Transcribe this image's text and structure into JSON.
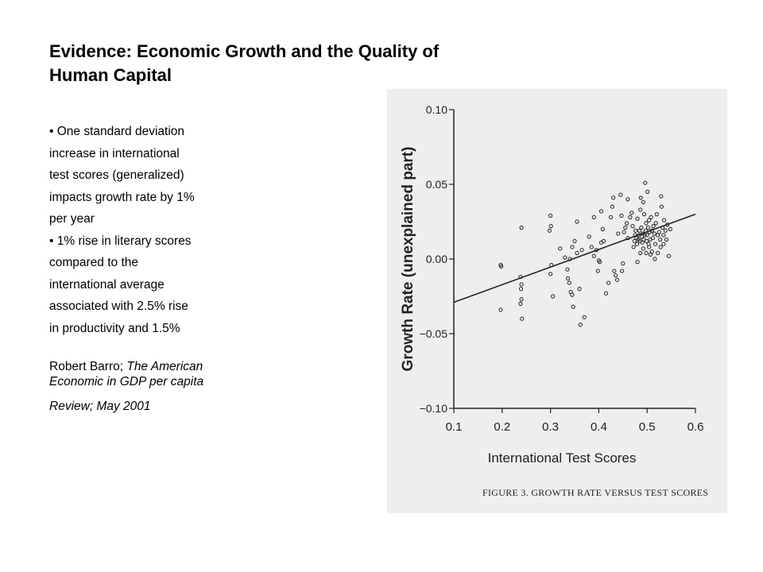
{
  "slide": {
    "title_line1": "Evidence:  Economic Growth and the Quality of",
    "title_line2": "Human Capital",
    "bullet_lines": [
      "• One standard deviation",
      "increase in international",
      "test scores (generalized)",
      "impacts growth rate by 1%",
      "per year",
      "• 1% rise in literary scores",
      "compared to the",
      "international average",
      "associated with 2.5% rise",
      "in productivity and 1.5%"
    ],
    "citation": {
      "author": "Robert Barro; ",
      "journal_part1": "The American",
      "journal_part2": "Economic in GDP per capita",
      "journal_part3": "Review; May 2001"
    }
  },
  "chart_data": {
    "type": "scatter",
    "title": "",
    "caption": "FIGURE 3. GROWTH RATE VERSUS TEST SCORES",
    "xlabel": "International Test Scores",
    "ylabel": "Growth Rate (unexplained part)",
    "xlim": [
      0.1,
      0.6
    ],
    "ylim": [
      -0.1,
      0.1
    ],
    "xticks": [
      "0.1",
      "0.2",
      "0.3",
      "0.4",
      "0.5",
      "0.6"
    ],
    "yticks": [
      "0.10",
      "0.05",
      "0.00",
      "−0.05",
      "−0.10"
    ],
    "grid": false,
    "fit_line": {
      "x": [
        0.1,
        0.6
      ],
      "y": [
        -0.029,
        0.03
      ]
    },
    "colors": {
      "background": "#eeeeee",
      "ink": "#222222"
    },
    "points": [
      [
        0.197,
        -0.004
      ],
      [
        0.198,
        -0.005
      ],
      [
        0.197,
        -0.034
      ],
      [
        0.24,
        0.021
      ],
      [
        0.238,
        -0.012
      ],
      [
        0.24,
        -0.017
      ],
      [
        0.239,
        -0.02
      ],
      [
        0.24,
        -0.027
      ],
      [
        0.238,
        -0.03
      ],
      [
        0.241,
        -0.04
      ],
      [
        0.3,
        0.029
      ],
      [
        0.301,
        0.022
      ],
      [
        0.298,
        0.019
      ],
      [
        0.302,
        -0.004
      ],
      [
        0.3,
        -0.01
      ],
      [
        0.305,
        -0.025
      ],
      [
        0.32,
        0.007
      ],
      [
        0.33,
        0.001
      ],
      [
        0.335,
        -0.007
      ],
      [
        0.34,
        0.0
      ],
      [
        0.336,
        -0.013
      ],
      [
        0.339,
        -0.016
      ],
      [
        0.342,
        -0.022
      ],
      [
        0.345,
        -0.024
      ],
      [
        0.347,
        -0.032
      ],
      [
        0.35,
        0.012
      ],
      [
        0.355,
        0.004
      ],
      [
        0.36,
        -0.02
      ],
      [
        0.362,
        -0.044
      ],
      [
        0.37,
        -0.039
      ],
      [
        0.365,
        0.006
      ],
      [
        0.38,
        0.015
      ],
      [
        0.385,
        0.008
      ],
      [
        0.39,
        0.002
      ],
      [
        0.395,
        0.006
      ],
      [
        0.4,
        -0.001
      ],
      [
        0.398,
        -0.008
      ],
      [
        0.402,
        -0.002
      ],
      [
        0.405,
        0.011
      ],
      [
        0.408,
        0.02
      ],
      [
        0.41,
        0.012
      ],
      [
        0.415,
        -0.023
      ],
      [
        0.42,
        -0.016
      ],
      [
        0.425,
        0.028
      ],
      [
        0.428,
        0.035
      ],
      [
        0.43,
        0.041
      ],
      [
        0.432,
        -0.008
      ],
      [
        0.435,
        -0.011
      ],
      [
        0.438,
        -0.014
      ],
      [
        0.44,
        0.017
      ],
      [
        0.445,
        0.043
      ],
      [
        0.447,
        0.029
      ],
      [
        0.448,
        -0.008
      ],
      [
        0.45,
        -0.003
      ],
      [
        0.452,
        0.018
      ],
      [
        0.455,
        0.021
      ],
      [
        0.458,
        0.024
      ],
      [
        0.46,
        0.014
      ],
      [
        0.465,
        0.028
      ],
      [
        0.468,
        0.031
      ],
      [
        0.47,
        0.022
      ],
      [
        0.472,
        0.008
      ],
      [
        0.474,
        0.012
      ],
      [
        0.475,
        0.016
      ],
      [
        0.476,
        0.019
      ],
      [
        0.478,
        0.014
      ],
      [
        0.479,
        0.01
      ],
      [
        0.48,
        0.027
      ],
      [
        0.482,
        0.013
      ],
      [
        0.483,
        0.016
      ],
      [
        0.484,
        0.019
      ],
      [
        0.485,
        0.012
      ],
      [
        0.486,
        0.033
      ],
      [
        0.487,
        0.041
      ],
      [
        0.488,
        0.021
      ],
      [
        0.489,
        0.015
      ],
      [
        0.49,
        0.011
      ],
      [
        0.491,
        0.017
      ],
      [
        0.492,
        0.038
      ],
      [
        0.493,
        0.013
      ],
      [
        0.494,
        0.03
      ],
      [
        0.495,
        0.016
      ],
      [
        0.496,
        0.051
      ],
      [
        0.497,
        0.019
      ],
      [
        0.498,
        0.024
      ],
      [
        0.499,
        0.012
      ],
      [
        0.5,
        0.016
      ],
      [
        0.501,
        0.045
      ],
      [
        0.502,
        0.021
      ],
      [
        0.503,
        0.01
      ],
      [
        0.504,
        0.026
      ],
      [
        0.505,
        0.018
      ],
      [
        0.506,
        0.013
      ],
      [
        0.507,
        0.003
      ],
      [
        0.508,
        0.028
      ],
      [
        0.51,
        0.019
      ],
      [
        0.512,
        0.014
      ],
      [
        0.513,
        0.022
      ],
      [
        0.515,
        0.017
      ],
      [
        0.517,
        0.01
      ],
      [
        0.518,
        0.024
      ],
      [
        0.52,
        0.03
      ],
      [
        0.522,
        0.016
      ],
      [
        0.525,
        0.018
      ],
      [
        0.527,
        0.013
      ],
      [
        0.529,
        0.042
      ],
      [
        0.53,
        0.035
      ],
      [
        0.532,
        0.021
      ],
      [
        0.534,
        0.016
      ],
      [
        0.535,
        0.026
      ],
      [
        0.538,
        0.019
      ],
      [
        0.54,
        0.013
      ],
      [
        0.542,
        0.023
      ],
      [
        0.545,
        0.002
      ],
      [
        0.548,
        0.02
      ],
      [
        0.48,
        -0.002
      ],
      [
        0.486,
        0.004
      ],
      [
        0.492,
        0.007
      ],
      [
        0.498,
        0.004
      ],
      [
        0.504,
        0.008
      ],
      [
        0.51,
        0.005
      ],
      [
        0.516,
        0.0
      ],
      [
        0.522,
        0.004
      ],
      [
        0.528,
        0.008
      ],
      [
        0.534,
        0.01
      ],
      [
        0.39,
        0.028
      ],
      [
        0.405,
        0.032
      ],
      [
        0.345,
        0.008
      ],
      [
        0.355,
        0.025
      ],
      [
        0.46,
        0.04
      ]
    ]
  }
}
